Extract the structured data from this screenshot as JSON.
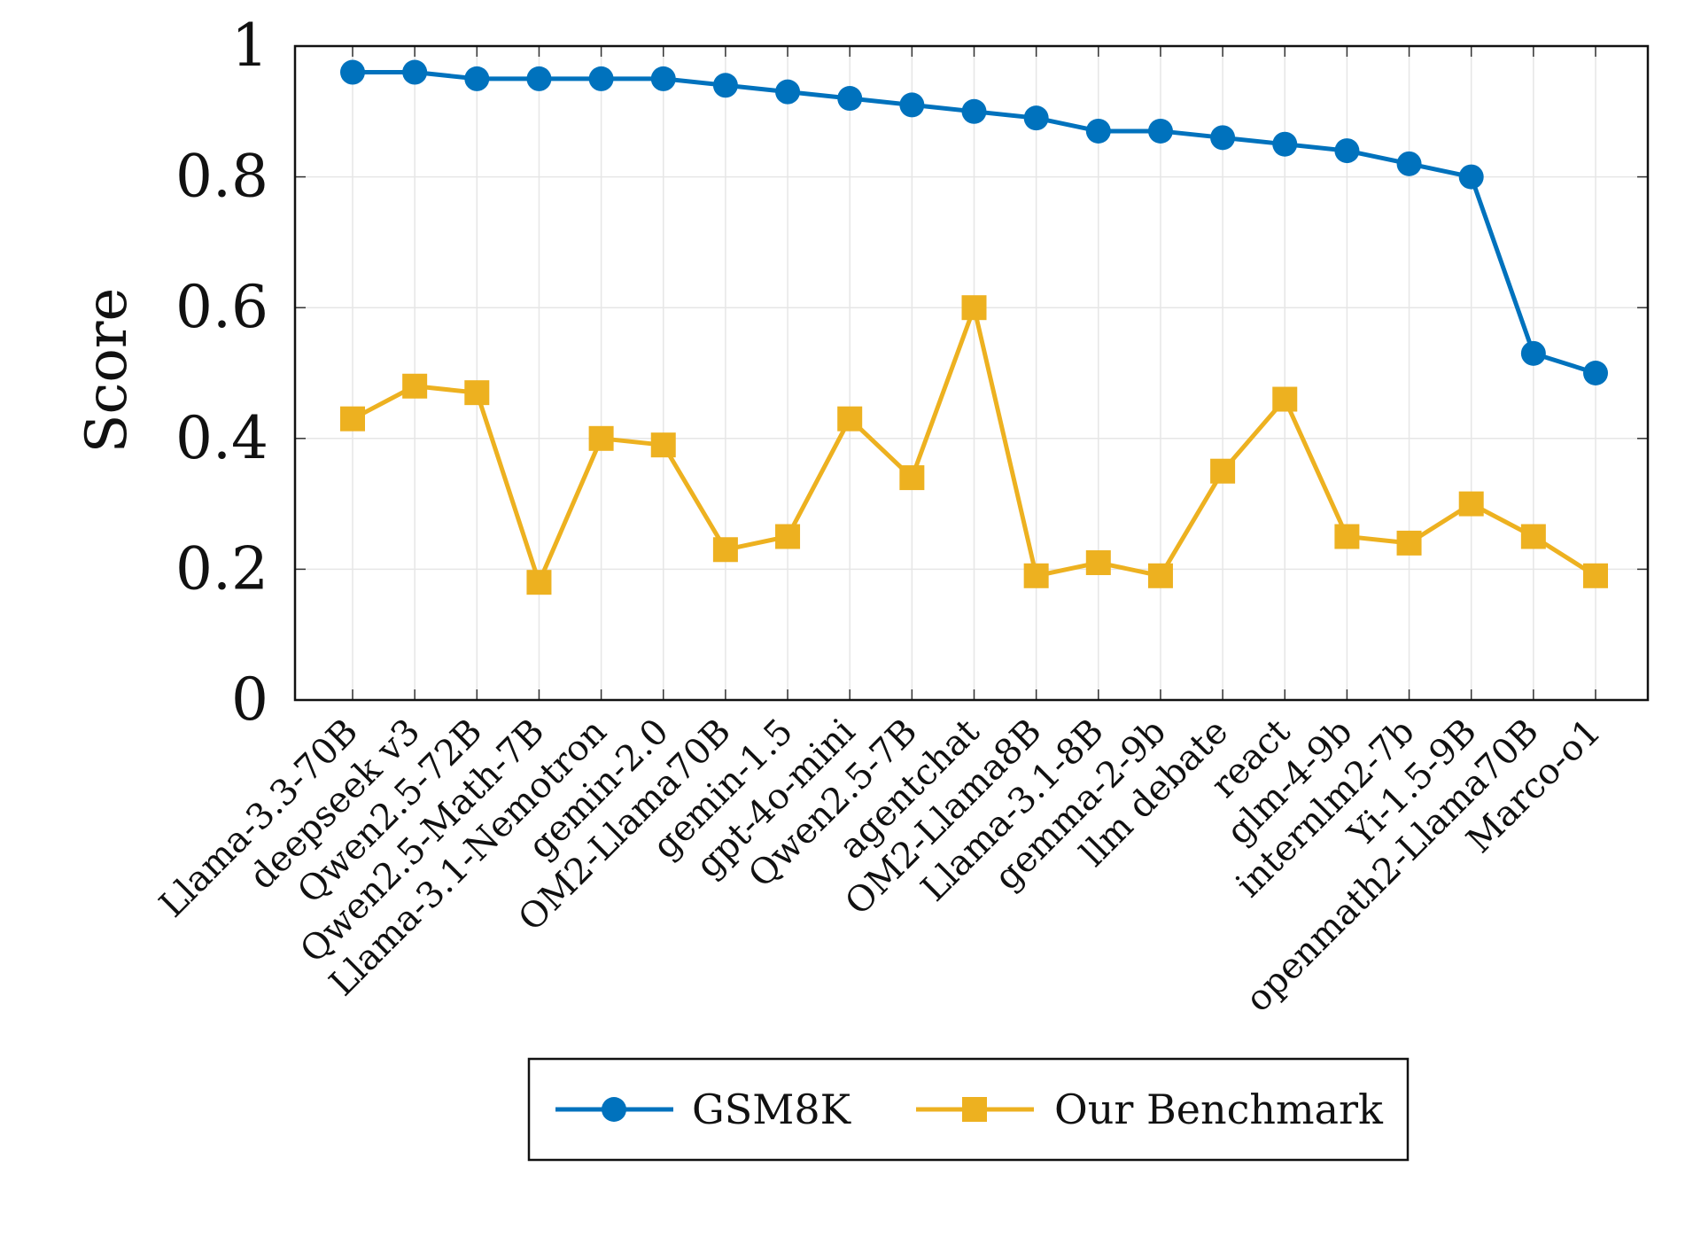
{
  "chart_data": {
    "type": "line",
    "title": "",
    "xlabel": "",
    "ylabel": "Score",
    "ylim": [
      0,
      1
    ],
    "yticks": [
      0,
      0.2,
      0.4,
      0.6,
      0.8,
      1
    ],
    "ytick_labels": [
      "0",
      "0.2",
      "0.4",
      "0.6",
      "0.8",
      "1"
    ],
    "grid": true,
    "legend_position": "bottom-center",
    "categories": [
      "Llama-3.3-70B",
      "deepseek v3",
      "Qwen2.5-72B",
      "Qwen2.5-Math-7B",
      "Llama-3.1-Nemotron",
      "gemin-2.0",
      "OM2-Llama70B",
      "gemin-1.5",
      "gpt-4o-mini",
      "Qwen2.5-7B",
      "agentchat",
      "OM2-Llama8B",
      "Llama-3.1-8B",
      "gemma-2-9b",
      "llm debate",
      "react",
      "glm-4-9b",
      "internlm2-7b",
      "Yi-1.5-9B",
      "openmath2-Llama70B",
      "Marco-o1"
    ],
    "series": [
      {
        "name": "GSM8K",
        "color": "#0072bd",
        "marker": "circle",
        "values": [
          0.96,
          0.96,
          0.95,
          0.95,
          0.95,
          0.95,
          0.94,
          0.93,
          0.92,
          0.91,
          0.9,
          0.89,
          0.87,
          0.87,
          0.86,
          0.85,
          0.84,
          0.82,
          0.8,
          0.53,
          0.5
        ]
      },
      {
        "name": "Our Benchmark",
        "color": "#edb120",
        "marker": "square",
        "values": [
          0.43,
          0.48,
          0.47,
          0.18,
          0.4,
          0.39,
          0.23,
          0.25,
          0.43,
          0.34,
          0.6,
          0.19,
          0.21,
          0.19,
          0.35,
          0.46,
          0.25,
          0.24,
          0.3,
          0.25,
          0.19
        ]
      }
    ]
  }
}
